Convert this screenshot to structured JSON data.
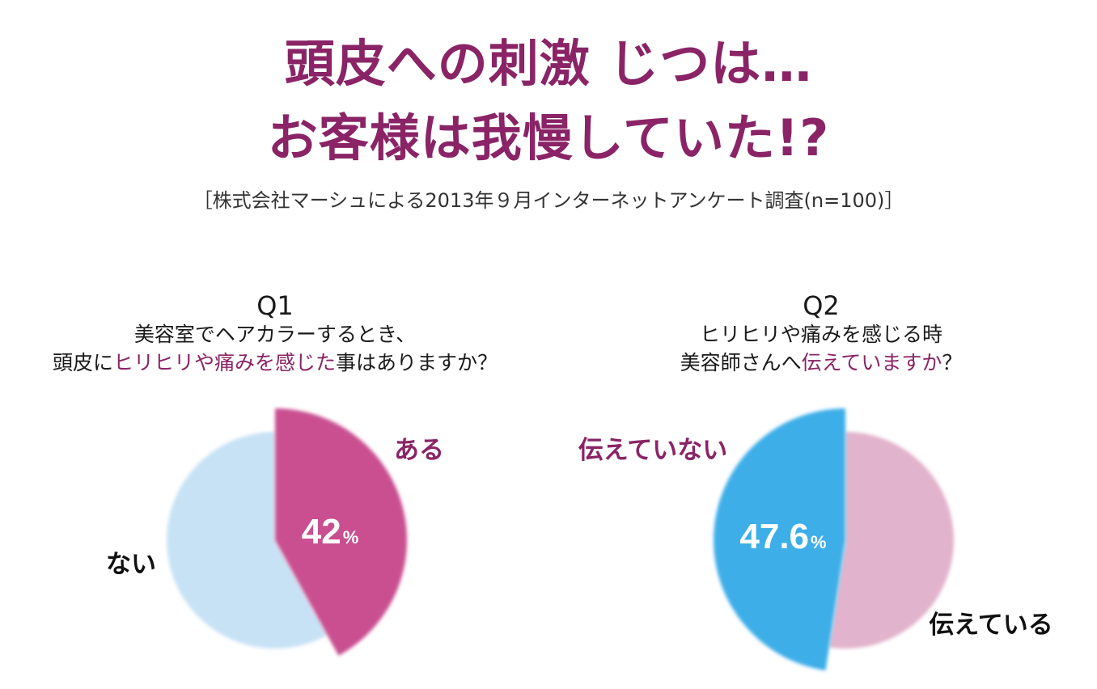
{
  "title_line1": "頭皮への刺激 じつは…",
  "title_line2": "お客様は我慢していた!?",
  "subtitle": "［株式会社マーシュによる2013年９月インターネットアンケート調査(n=100)］",
  "q1": {
    "number": "Q1",
    "line1": "美容室でヘアカラーするとき、",
    "line2_pre": "頭皮に",
    "line2_hl": "ヒリヒリや痛みを感じた",
    "line2_post": "事はありますか？"
  },
  "q2": {
    "number": "Q2",
    "line1": "ヒリヒリや痛みを感じる時",
    "line2_pre": "美容師さんへ",
    "line2_hl": "伝えていますか",
    "line2_post": "？"
  },
  "colors": {
    "accent": "#8a2466",
    "q1_yes": "#c94f91",
    "q1_no": "#c8e2f5",
    "q2_not_tell": "#3eaee8",
    "q2_tell": "#e2b3cc"
  },
  "chart_data": [
    {
      "type": "pie",
      "title": "Q1",
      "slices": [
        {
          "label": "ある",
          "value": 42,
          "display": "42",
          "unit": "%"
        },
        {
          "label": "ない",
          "value": 58
        }
      ]
    },
    {
      "type": "pie",
      "title": "Q2",
      "slices": [
        {
          "label": "伝えていない",
          "value": 47.6,
          "display": "47.6",
          "unit": "%"
        },
        {
          "label": "伝えている",
          "value": 52.4
        }
      ]
    }
  ]
}
